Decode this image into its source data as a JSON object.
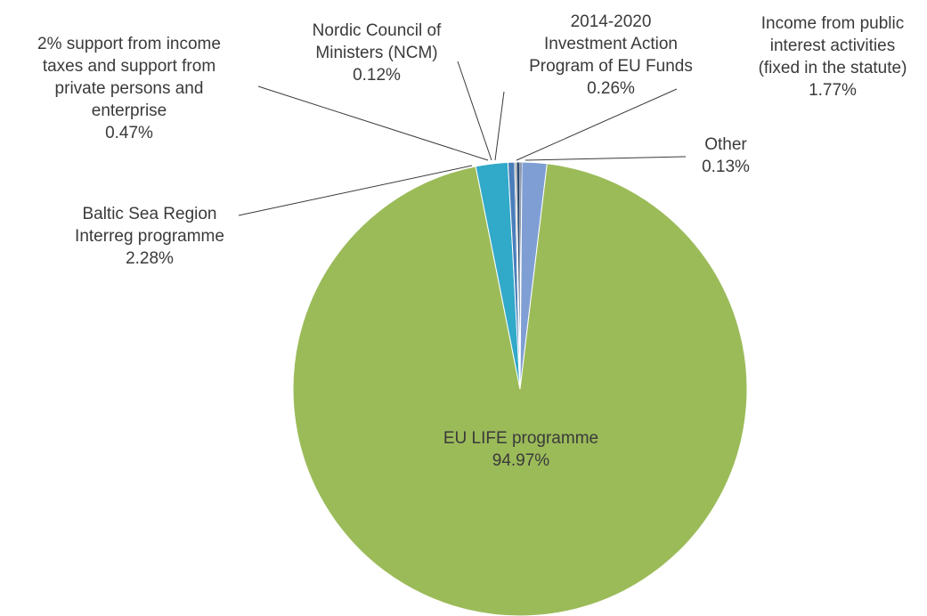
{
  "chart_data": {
    "type": "pie",
    "title": "",
    "slices": [
      {
        "name": "Other",
        "value": 0.13,
        "color": "#1f3864",
        "label_lines": [
          "Other",
          "0.13%"
        ]
      },
      {
        "name": "Income from public interest activities (fixed in the statute)",
        "value": 1.77,
        "color": "#7f9fd4",
        "label_lines": [
          "Income from public",
          "interest activities",
          "(fixed in the statute)",
          "1.77%"
        ]
      },
      {
        "name": "EU LIFE programme",
        "value": 94.97,
        "color": "#9bbb59",
        "label_lines": [
          "EU LIFE programme",
          "94.97%"
        ]
      },
      {
        "name": "Baltic Sea Region Interreg programme",
        "value": 2.28,
        "color": "#31a9c9",
        "label_lines": [
          "Baltic Sea Region",
          "Interreg programme",
          "2.28%"
        ]
      },
      {
        "name": "2% support from income taxes and support from private persons and enterprise",
        "value": 0.47,
        "color": "#4a7ebb",
        "label_lines": [
          "2% support from income",
          "taxes and support from",
          "private persons and",
          "enterprise",
          "0.47%"
        ]
      },
      {
        "name": "Nordic Council of Ministers (NCM)",
        "value": 0.12,
        "color": "#7a7a7a",
        "label_lines": [
          "Nordic Council of",
          "Ministers (NCM)",
          "0.12%"
        ]
      },
      {
        "name": "2014-2020 Investment Action Program of EU Funds",
        "value": 0.26,
        "color": "#2e4a6e",
        "label_lines": [
          "2014-2020",
          "Investment Action",
          "Program of EU Funds",
          "0.26%"
        ]
      }
    ]
  }
}
